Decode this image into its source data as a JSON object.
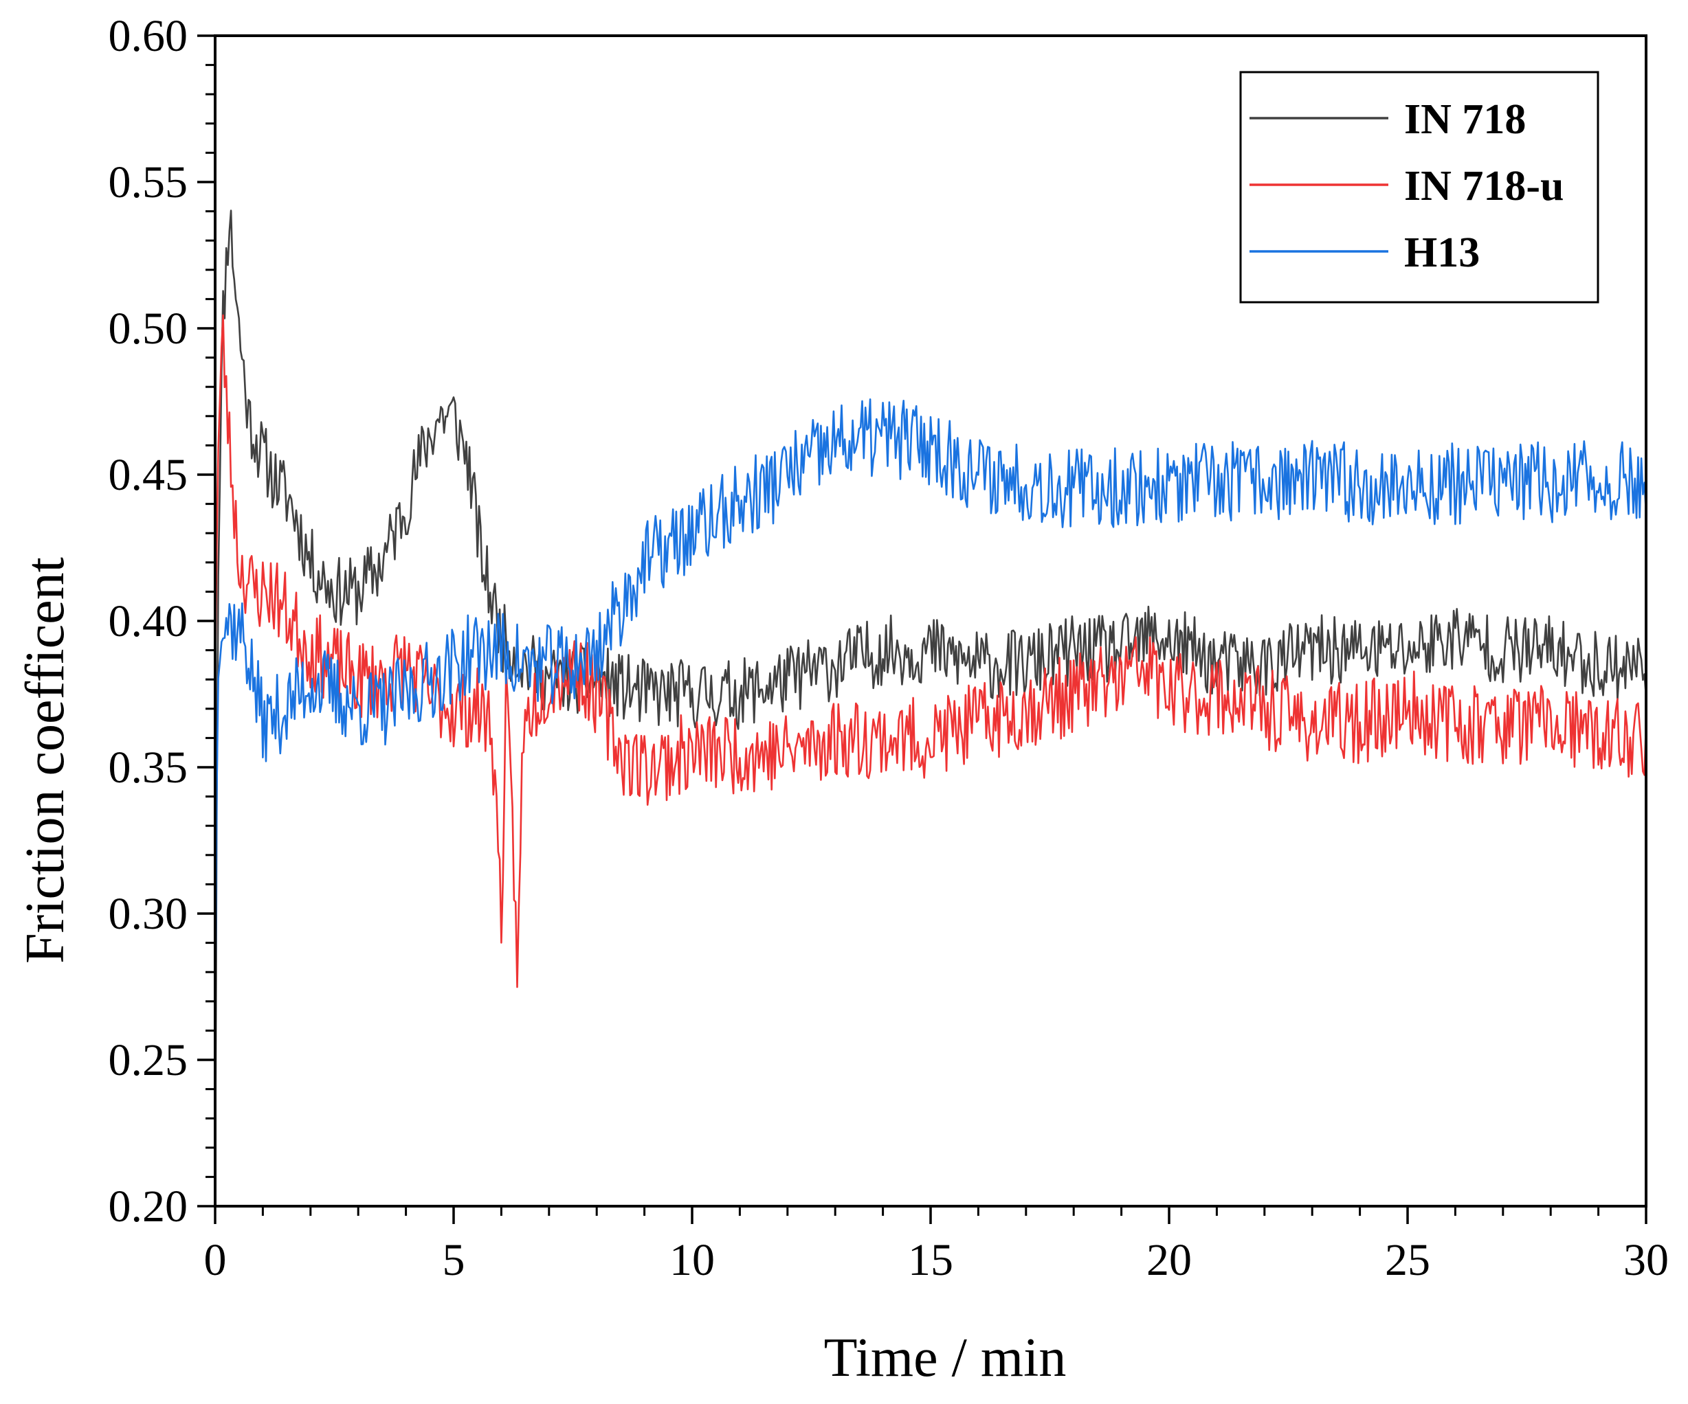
{
  "chart_data": {
    "type": "line",
    "title": "",
    "xlabel": "Time / min",
    "ylabel": "Friction coefficent",
    "xlim": [
      0,
      30
    ],
    "ylim": [
      0.2,
      0.6
    ],
    "xticks": [
      0,
      5,
      10,
      15,
      20,
      25,
      30
    ],
    "xtick_labels": [
      "0",
      "5",
      "10",
      "15",
      "20",
      "25",
      "30"
    ],
    "yticks": [
      0.2,
      0.25,
      0.3,
      0.35,
      0.4,
      0.45,
      0.5,
      0.55,
      0.6
    ],
    "ytick_labels": [
      "0.20",
      "0.25",
      "0.30",
      "0.35",
      "0.40",
      "0.45",
      "0.50",
      "0.55",
      "0.60"
    ],
    "grid": false,
    "legend_position": "top-right",
    "series": [
      {
        "name": "IN 718",
        "color": "#404040",
        "noise": 0.012,
        "seed": 11,
        "x": [
          0,
          0.05,
          0.15,
          0.3,
          0.5,
          0.7,
          0.9,
          1.2,
          1.6,
          2.0,
          2.5,
          3.0,
          3.5,
          4.0,
          4.4,
          4.7,
          5.0,
          5.3,
          5.6,
          6.0,
          6.5,
          7.0,
          8.0,
          9.0,
          10.0,
          11.0,
          12.0,
          13.0,
          14.0,
          15.0,
          16.0,
          17.0,
          18.0,
          19.0,
          19.7,
          20.5,
          21.0,
          22.0,
          23.0,
          24.0,
          25.0,
          26.0,
          27.0,
          28.0,
          29.0,
          29.6,
          30.0
        ],
        "y": [
          0.2,
          0.4,
          0.5,
          0.54,
          0.5,
          0.47,
          0.46,
          0.45,
          0.44,
          0.42,
          0.41,
          0.41,
          0.42,
          0.44,
          0.46,
          0.47,
          0.47,
          0.455,
          0.42,
          0.395,
          0.385,
          0.38,
          0.38,
          0.375,
          0.375,
          0.375,
          0.38,
          0.385,
          0.39,
          0.39,
          0.385,
          0.385,
          0.39,
          0.39,
          0.395,
          0.39,
          0.385,
          0.385,
          0.39,
          0.39,
          0.39,
          0.395,
          0.39,
          0.39,
          0.385,
          0.385,
          0.385
        ]
      },
      {
        "name": "IN 718-u",
        "color": "#ee3333",
        "noise": 0.014,
        "seed": 23,
        "x": [
          0,
          0.05,
          0.15,
          0.3,
          0.5,
          0.8,
          1.2,
          1.6,
          2.0,
          2.5,
          3.0,
          3.5,
          4.0,
          4.5,
          5.0,
          5.5,
          5.8,
          6.0,
          6.1,
          6.2,
          6.35,
          6.45,
          6.6,
          7.0,
          7.5,
          8.0,
          8.5,
          9.0,
          10.0,
          11.0,
          12.0,
          13.0,
          14.0,
          15.0,
          16.0,
          17.0,
          18.0,
          19.0,
          19.5,
          20.0,
          21.0,
          22.0,
          23.0,
          24.0,
          25.0,
          26.0,
          27.0,
          28.0,
          29.0,
          30.0
        ],
        "y": [
          0.38,
          0.45,
          0.5,
          0.46,
          0.42,
          0.41,
          0.41,
          0.4,
          0.39,
          0.385,
          0.38,
          0.38,
          0.385,
          0.375,
          0.37,
          0.37,
          0.365,
          0.3,
          0.37,
          0.34,
          0.28,
          0.36,
          0.37,
          0.38,
          0.385,
          0.375,
          0.355,
          0.35,
          0.355,
          0.355,
          0.355,
          0.36,
          0.36,
          0.36,
          0.365,
          0.37,
          0.375,
          0.38,
          0.385,
          0.375,
          0.375,
          0.37,
          0.365,
          0.365,
          0.37,
          0.365,
          0.365,
          0.365,
          0.36,
          0.36
        ]
      },
      {
        "name": "H13",
        "color": "#1a73e0",
        "noise": 0.014,
        "seed": 37,
        "x": [
          0,
          0.05,
          0.15,
          0.3,
          0.6,
          1.0,
          1.5,
          2.0,
          2.5,
          3.0,
          3.5,
          4.0,
          4.5,
          5.0,
          5.5,
          6.0,
          6.5,
          7.0,
          7.5,
          8.0,
          8.5,
          9.0,
          9.5,
          10.0,
          10.5,
          11.0,
          11.5,
          12.0,
          12.5,
          13.0,
          13.5,
          14.0,
          14.5,
          15.0,
          15.5,
          16.0,
          17.0,
          18.0,
          19.0,
          20.0,
          21.0,
          22.0,
          23.0,
          24.0,
          25.0,
          26.0,
          27.0,
          28.0,
          29.0,
          30.0
        ],
        "y": [
          0.26,
          0.38,
          0.4,
          0.4,
          0.395,
          0.365,
          0.37,
          0.38,
          0.375,
          0.37,
          0.37,
          0.375,
          0.38,
          0.385,
          0.39,
          0.39,
          0.385,
          0.385,
          0.385,
          0.39,
          0.405,
          0.42,
          0.425,
          0.43,
          0.435,
          0.44,
          0.445,
          0.45,
          0.455,
          0.46,
          0.462,
          0.463,
          0.462,
          0.46,
          0.455,
          0.45,
          0.448,
          0.445,
          0.446,
          0.446,
          0.447,
          0.448,
          0.448,
          0.447,
          0.446,
          0.447,
          0.448,
          0.447,
          0.448,
          0.447
        ]
      }
    ]
  }
}
